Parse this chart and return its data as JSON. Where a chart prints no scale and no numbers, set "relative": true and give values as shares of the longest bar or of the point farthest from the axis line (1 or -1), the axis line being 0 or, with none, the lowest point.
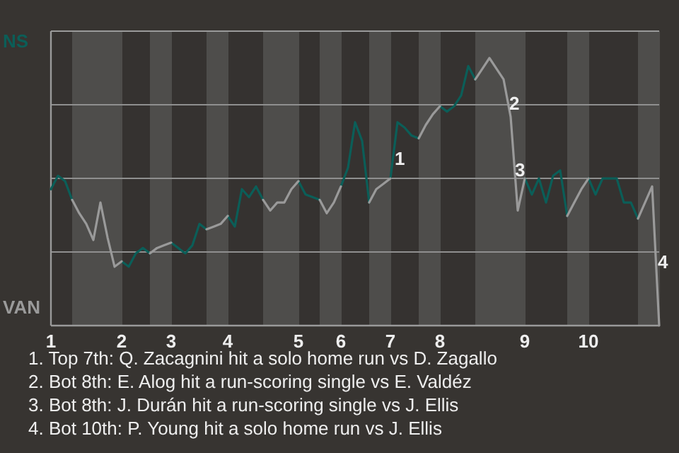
{
  "chart_data": {
    "type": "line",
    "relative": true,
    "categories": [
      "1",
      null,
      null,
      null,
      null,
      null,
      null,
      null,
      null,
      null,
      "2",
      null,
      null,
      null,
      null,
      null,
      null,
      "3",
      null,
      null,
      null,
      null,
      null,
      null,
      null,
      "4",
      null,
      null,
      null,
      null,
      null,
      null,
      null,
      null,
      null,
      "5",
      null,
      null,
      null,
      null,
      null,
      "6",
      null,
      null,
      null,
      null,
      null,
      null,
      "7",
      null,
      null,
      null,
      null,
      null,
      null,
      "8",
      null,
      null,
      null,
      null,
      null,
      null,
      null,
      null,
      null,
      null,
      null,
      "9",
      null,
      null,
      null,
      null,
      null,
      null,
      null,
      null,
      "10",
      null,
      null,
      null,
      null,
      null,
      null,
      null,
      null,
      null,
      null
    ],
    "series": [
      {
        "name": "NS",
        "color": "#0b5e58",
        "values": [
          0.51,
          0.56,
          0.54,
          0.47,
          null,
          null,
          null,
          null,
          null,
          null,
          0.24,
          0.22,
          0.27,
          0.29,
          0.27,
          null,
          null,
          0.31,
          0.29,
          0.27,
          0.3,
          0.38,
          0.36,
          null,
          null,
          0.41,
          0.37,
          0.51,
          0.48,
          0.52,
          0.47,
          null,
          null,
          null,
          null,
          0.54,
          0.49,
          0.48,
          0.47,
          null,
          null,
          0.52,
          0.59,
          0.76,
          0.69,
          0.46,
          null,
          null,
          0.55,
          0.76,
          0.74,
          0.71,
          0.7,
          null,
          null,
          0.82,
          0.8,
          0.82,
          0.86,
          0.97,
          0.92,
          null,
          null,
          null,
          null,
          null,
          null,
          0.55,
          0.49,
          0.55,
          0.46,
          0.56,
          0.58,
          0.41,
          null,
          null,
          0.55,
          0.49,
          0.55,
          0.55,
          0.55,
          0.46,
          0.46,
          0.4,
          null,
          null,
          null
        ]
      },
      {
        "name": "VAN",
        "color": "#9a9a9a",
        "values": [
          null,
          null,
          null,
          0.47,
          0.42,
          0.38,
          0.32,
          0.46,
          0.33,
          0.22,
          0.24,
          null,
          null,
          null,
          0.27,
          0.29,
          0.3,
          0.31,
          null,
          null,
          null,
          null,
          0.36,
          0.37,
          0.38,
          0.41,
          null,
          null,
          null,
          null,
          0.47,
          0.43,
          0.46,
          0.46,
          0.51,
          0.54,
          null,
          null,
          0.47,
          0.42,
          0.46,
          0.52,
          null,
          null,
          null,
          0.46,
          0.51,
          0.53,
          0.55,
          null,
          null,
          null,
          0.7,
          0.75,
          0.79,
          0.82,
          null,
          null,
          null,
          null,
          0.92,
          0.96,
          1,
          0.96,
          0.92,
          0.78,
          0.43,
          0.55,
          null,
          null,
          null,
          null,
          null,
          0.41,
          0.46,
          0.51,
          0.55,
          null,
          null,
          null,
          null,
          null,
          null,
          0.4,
          0.46,
          0.52,
          0
        ]
      }
    ],
    "grid": true,
    "annotations": [
      "1",
      "2",
      "3",
      "4",
      "1. Top 7th: Q. Zacagnini hit a solo home run vs D. Zagallo",
      "2. Bot 8th: E. Alog hit a run-scoring single vs E. Valdéz",
      "3. Bot 8th: J. Durán hit a run-scoring single vs J. Ellis",
      "4. Bot 10th: P. Young hit a solo home run vs J. Ellis"
    ]
  }
}
